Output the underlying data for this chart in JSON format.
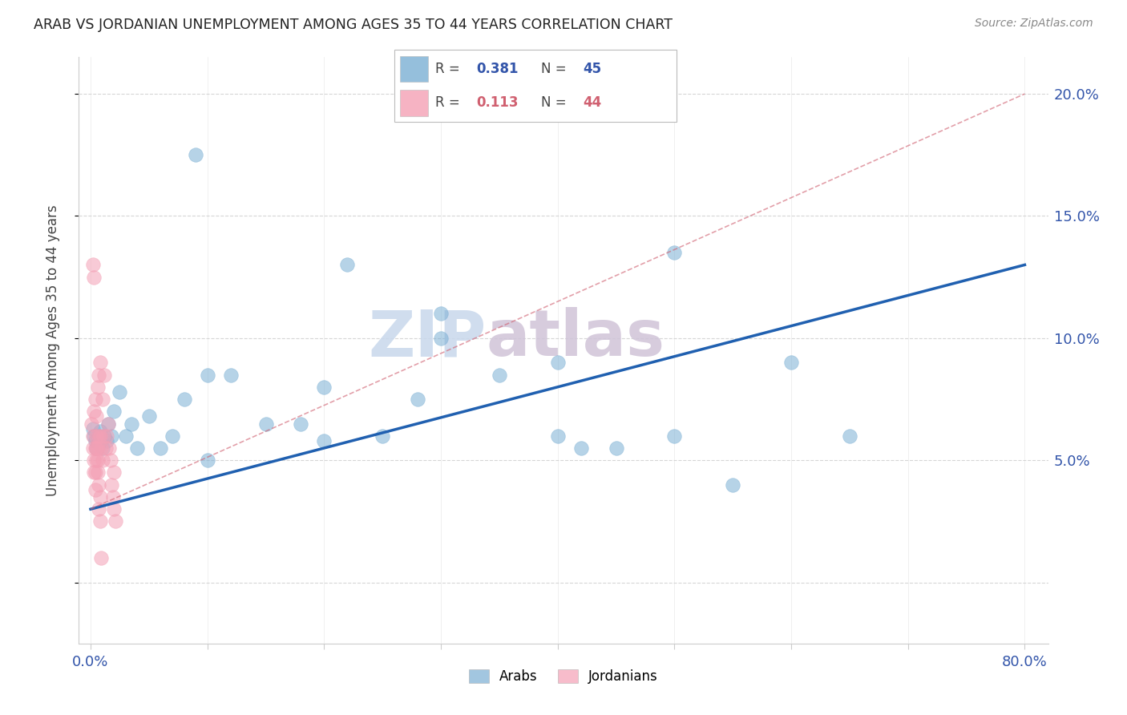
{
  "title": "ARAB VS JORDANIAN UNEMPLOYMENT AMONG AGES 35 TO 44 YEARS CORRELATION CHART",
  "source": "Source: ZipAtlas.com",
  "ylabel": "Unemployment Among Ages 35 to 44 years",
  "watermark_zip": "ZIP",
  "watermark_atlas": "atlas",
  "xlim": [
    -0.01,
    0.82
  ],
  "ylim": [
    -0.025,
    0.215
  ],
  "yticks": [
    0.0,
    0.05,
    0.1,
    0.15,
    0.2
  ],
  "xticks": [
    0.0,
    0.1,
    0.2,
    0.3,
    0.4,
    0.5,
    0.6,
    0.7,
    0.8
  ],
  "arab_R": 0.381,
  "arab_N": 45,
  "jordan_R": 0.113,
  "jordan_N": 44,
  "arab_color": "#7BAFD4",
  "jordan_color": "#F4A0B5",
  "arab_line_color": "#2060B0",
  "jordan_line_color": "#D06070",
  "background_color": "#FFFFFF",
  "grid_color": "#CCCCCC",
  "title_color": "#222222",
  "axis_label_color": "#3355AA",
  "source_color": "#888888",
  "arab_line_start_y": 0.03,
  "arab_line_end_y": 0.13,
  "jordan_line_start_y": 0.03,
  "jordan_line_end_y": 0.2
}
